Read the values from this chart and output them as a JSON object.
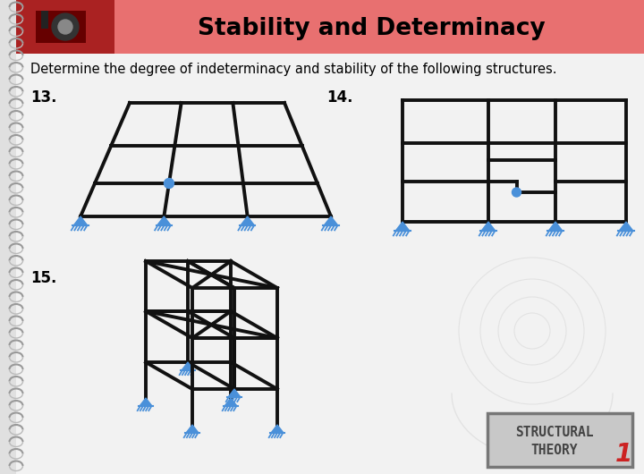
{
  "title": "Stability and Determinacy",
  "subtitle": "Determine the degree of indeterminacy and stability of the following structures.",
  "header_bg": "#e87070",
  "bg_color": "#e0e0e0",
  "paper_color": "#f2f2f2",
  "line_color": "#111111",
  "support_color": "#4a90d9",
  "hinge_color": "#4a90d9",
  "spiral_color": "#aaaaaa",
  "label_13": "13.",
  "label_14": "14.",
  "label_15": "15."
}
